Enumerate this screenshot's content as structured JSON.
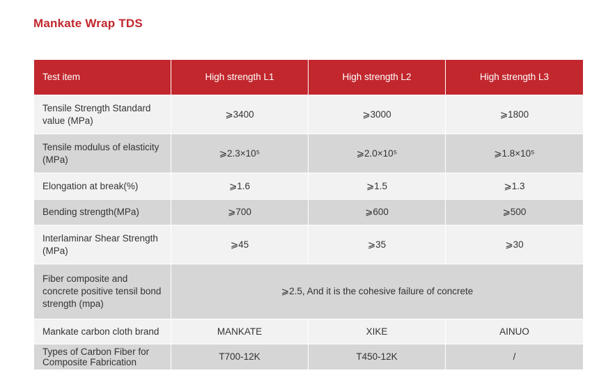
{
  "title": "Mankate Wrap TDS",
  "table": {
    "headers": [
      "Test item",
      "High strength L1",
      "High strength L2",
      "High strength L3"
    ],
    "rows": [
      {
        "label": "Tensile Strength Standard value (MPa)",
        "l1": "⩾3400",
        "l2": "⩾3000",
        "l3": "⩾1800"
      },
      {
        "label": "Tensile modulus of elasticity (MPa)",
        "l1": "⩾2.3×10⁵",
        "l2": "⩾2.0×10⁵",
        "l3": "⩾1.8×10⁵"
      },
      {
        "label": "Elongation at break(%)",
        "l1": "⩾1.6",
        "l2": "⩾1.5",
        "l3": "⩾1.3"
      },
      {
        "label": "Bending strength(MPa)",
        "l1": "⩾700",
        "l2": "⩾600",
        "l3": "⩾500"
      },
      {
        "label": "Interlaminar Shear Strength (MPa)",
        "l1": "⩾45",
        "l2": "⩾35",
        "l3": "⩾30"
      },
      {
        "label": "Fiber composite and concrete positive tensil bond strength  (mpa)",
        "merged": "⩾2.5, And it is the cohesive failure of concrete"
      },
      {
        "label": "Mankate carbon cloth brand",
        "l1": "MANKATE",
        "l2": "XIKE",
        "l3": "AINUO"
      },
      {
        "label": "Types of Carbon Fiber for Composite Fabrication",
        "l1": "T700-12K",
        "l2": "T450-12K",
        "l3": "/"
      }
    ]
  },
  "colors": {
    "accent": "#c1272d",
    "row_light": "#f2f2f2",
    "row_dark": "#d6d6d6"
  }
}
